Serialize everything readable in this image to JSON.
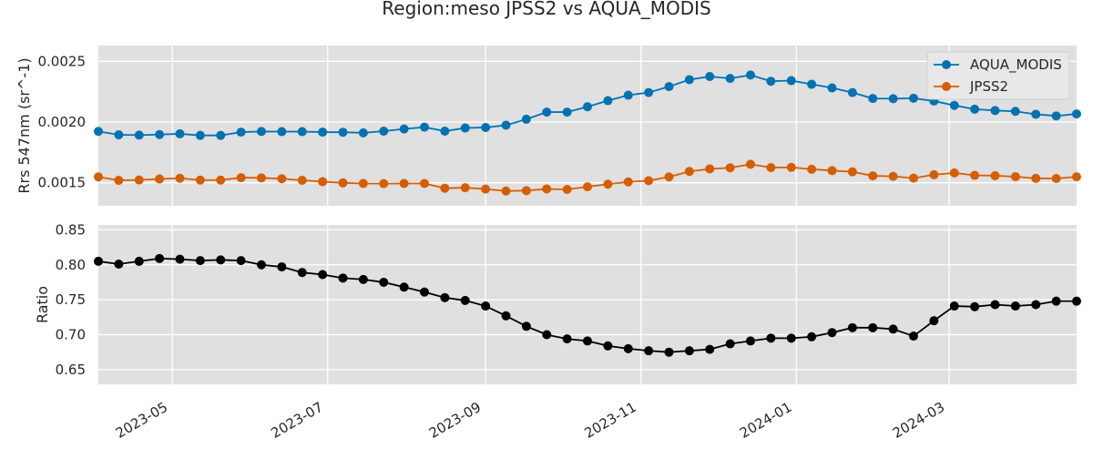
{
  "title": "Region:meso JPSS2 vs AQUA_MODIS",
  "chart_data": [
    {
      "type": "line",
      "ylabel": "Rrs 547nm (sr^-1)",
      "ylim": [
        0.00131,
        0.00263
      ],
      "yticks": [
        0.0015,
        0.002,
        0.0025
      ],
      "ytick_labels": [
        "0.0015",
        "0.0020",
        "0.0025"
      ],
      "grid": true,
      "legend_position": "top-right",
      "x": [
        "2023-04-02",
        "2023-04-10",
        "2023-04-18",
        "2023-04-26",
        "2023-05-04",
        "2023-05-12",
        "2023-05-20",
        "2023-05-28",
        "2023-06-05",
        "2023-06-13",
        "2023-06-21",
        "2023-06-29",
        "2023-07-07",
        "2023-07-15",
        "2023-07-23",
        "2023-07-31",
        "2023-08-08",
        "2023-08-16",
        "2023-08-24",
        "2023-09-01",
        "2023-09-09",
        "2023-09-17",
        "2023-09-25",
        "2023-10-03",
        "2023-10-11",
        "2023-10-19",
        "2023-10-27",
        "2023-11-04",
        "2023-11-12",
        "2023-11-20",
        "2023-11-28",
        "2023-12-06",
        "2023-12-14",
        "2023-12-22",
        "2023-12-30",
        "2024-01-07",
        "2024-01-15",
        "2024-01-23",
        "2024-01-31",
        "2024-02-08",
        "2024-02-16",
        "2024-02-24",
        "2024-03-03",
        "2024-03-11",
        "2024-03-19",
        "2024-03-27",
        "2024-04-04",
        "2024-04-12",
        "2024-04-20"
      ],
      "series": [
        {
          "name": "AQUA_MODIS",
          "color": "#0072b2",
          "values": [
            0.001923,
            0.001895,
            0.001892,
            0.001897,
            0.001903,
            0.00189,
            0.00189,
            0.001917,
            0.001922,
            0.001921,
            0.001921,
            0.001917,
            0.001916,
            0.001911,
            0.001925,
            0.001943,
            0.001958,
            0.001925,
            0.001951,
            0.001955,
            0.001974,
            0.002023,
            0.002082,
            0.002082,
            0.002126,
            0.002176,
            0.002221,
            0.002243,
            0.002292,
            0.002349,
            0.002375,
            0.002359,
            0.002387,
            0.002336,
            0.002341,
            0.002311,
            0.002281,
            0.002243,
            0.002194,
            0.002192,
            0.002196,
            0.002173,
            0.002137,
            0.002106,
            0.002095,
            0.002088,
            0.002064,
            0.00205,
            0.002067
          ]
        },
        {
          "name": "JPSS2",
          "color": "#d55e00",
          "values": [
            0.001548,
            0.00152,
            0.001523,
            0.001531,
            0.001537,
            0.001522,
            0.001522,
            0.001542,
            0.00154,
            0.001533,
            0.00152,
            0.001509,
            0.001499,
            0.001494,
            0.001493,
            0.001494,
            0.001494,
            0.001455,
            0.001459,
            0.001448,
            0.001432,
            0.001435,
            0.001449,
            0.001445,
            0.001467,
            0.001488,
            0.001507,
            0.001517,
            0.001548,
            0.001593,
            0.001614,
            0.001623,
            0.001652,
            0.001625,
            0.001627,
            0.001611,
            0.0016,
            0.00159,
            0.001557,
            0.001553,
            0.001538,
            0.001566,
            0.001581,
            0.001561,
            0.001558,
            0.00155,
            0.001536,
            0.001535,
            0.001549
          ]
        }
      ]
    },
    {
      "type": "line",
      "ylabel": "Ratio",
      "ylim": [
        0.629,
        0.857
      ],
      "yticks": [
        0.65,
        0.7,
        0.75,
        0.8,
        0.85
      ],
      "ytick_labels": [
        "0.65",
        "0.70",
        "0.75",
        "0.80",
        "0.85"
      ],
      "xticks": [
        "2023-05-01",
        "2023-07-01",
        "2023-09-01",
        "2023-11-01",
        "2024-01-01",
        "2024-03-01"
      ],
      "xtick_labels": [
        "2023-05",
        "2023-07",
        "2023-09",
        "2023-11",
        "2024-01",
        "2024-03"
      ],
      "grid": true,
      "series": [
        {
          "color": "#000000",
          "values": [
            0.805,
            0.801,
            0.805,
            0.809,
            0.808,
            0.806,
            0.807,
            0.806,
            0.8,
            0.797,
            0.789,
            0.786,
            0.781,
            0.779,
            0.775,
            0.768,
            0.761,
            0.753,
            0.749,
            0.741,
            0.727,
            0.712,
            0.7,
            0.694,
            0.691,
            0.684,
            0.68,
            0.677,
            0.675,
            0.677,
            0.679,
            0.687,
            0.691,
            0.695,
            0.695,
            0.697,
            0.703,
            0.71,
            0.71,
            0.708,
            0.698,
            0.72,
            0.741,
            0.74,
            0.743,
            0.741,
            0.743,
            0.748,
            0.748
          ]
        }
      ]
    }
  ]
}
